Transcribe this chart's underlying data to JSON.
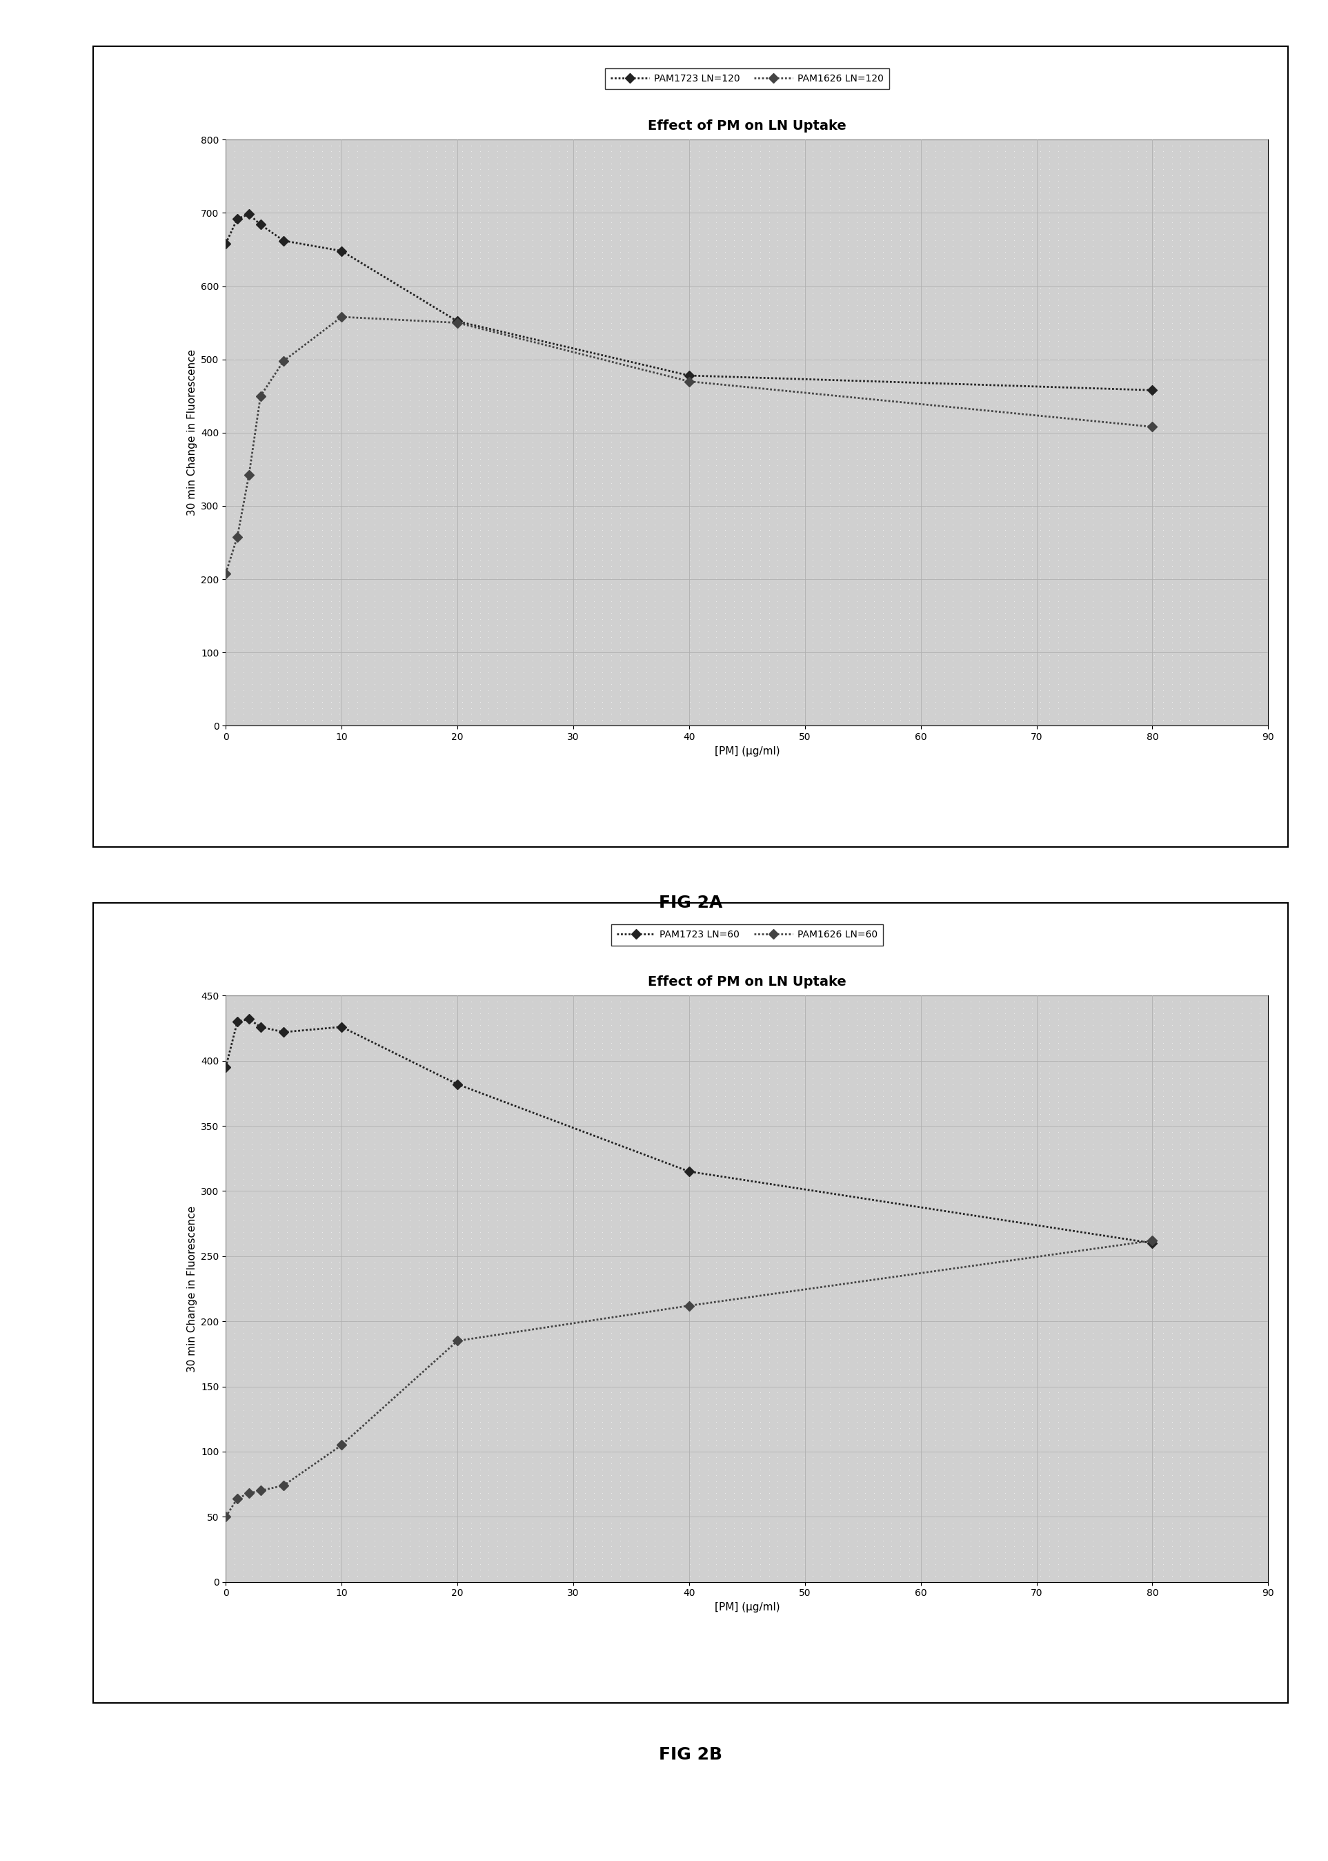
{
  "fig2a": {
    "title": "Effect of PM on LN Uptake",
    "legend": [
      "PAM1723 LN=120",
      "PAM1626 LN=120"
    ],
    "xlabel": "[PM] (μg/ml)",
    "ylabel": "30 min Change in Fluorescence",
    "xlim": [
      0,
      90
    ],
    "ylim": [
      0,
      800
    ],
    "xticks": [
      0,
      10,
      20,
      30,
      40,
      50,
      60,
      70,
      80,
      90
    ],
    "yticks": [
      0,
      100,
      200,
      300,
      400,
      500,
      600,
      700,
      800
    ],
    "series1_x": [
      0,
      1,
      2,
      3,
      5,
      10,
      20,
      40,
      80
    ],
    "series1_y": [
      658,
      692,
      698,
      684,
      662,
      648,
      552,
      478,
      458
    ],
    "series2_x": [
      0,
      1,
      2,
      3,
      5,
      10,
      20,
      40,
      80
    ],
    "series2_y": [
      208,
      258,
      342,
      450,
      498,
      558,
      550,
      470,
      408
    ],
    "fig_label": "FIG 2A"
  },
  "fig2b": {
    "title": "Effect of PM on LN Uptake",
    "legend": [
      "PAM1723 LN=60",
      "PAM1626 LN=60"
    ],
    "xlabel": "[PM] (μg/ml)",
    "ylabel": "30 min Change in Fluorescence",
    "xlim": [
      0,
      90
    ],
    "ylim": [
      0,
      450
    ],
    "xticks": [
      0,
      10,
      20,
      30,
      40,
      50,
      60,
      70,
      80,
      90
    ],
    "yticks": [
      0,
      50,
      100,
      150,
      200,
      250,
      300,
      350,
      400,
      450
    ],
    "series1_x": [
      0,
      1,
      2,
      3,
      5,
      10,
      20,
      40,
      80
    ],
    "series1_y": [
      395,
      430,
      432,
      426,
      422,
      426,
      382,
      315,
      260
    ],
    "series2_x": [
      0,
      1,
      2,
      3,
      5,
      10,
      20,
      40,
      80
    ],
    "series2_y": [
      50,
      64,
      68,
      70,
      74,
      105,
      185,
      212,
      262
    ],
    "fig_label": "FIG 2B"
  },
  "plot_bg_color": "#d8d8d8",
  "grid_color": "#a0a0a0",
  "line_color1": "#222222",
  "line_color2": "#444444",
  "title_fontsize": 14,
  "label_fontsize": 11,
  "tick_fontsize": 10,
  "legend_fontsize": 10,
  "fig_label_fontsize": 18
}
